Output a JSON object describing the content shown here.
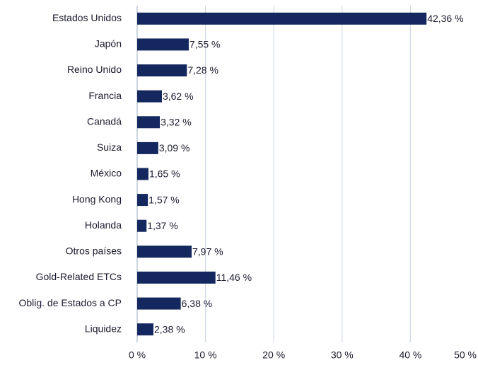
{
  "chart_data": {
    "type": "bar",
    "orientation": "horizontal",
    "categories": [
      "Estados Unidos",
      "Japón",
      "Reino Unido",
      "Francia",
      "Canadá",
      "Suiza",
      "México",
      "Hong Kong",
      "Holanda",
      "Otros países",
      "Gold-Related ETCs",
      "Oblig. de Estados a CP",
      "Liquidez"
    ],
    "values": [
      42.36,
      7.55,
      7.28,
      3.62,
      3.32,
      3.09,
      1.65,
      1.57,
      1.37,
      7.97,
      11.46,
      6.38,
      2.38
    ],
    "value_labels": [
      "42,36 %",
      "7,55 %",
      "7,28 %",
      "3,62 %",
      "3,32 %",
      "3,09 %",
      "1,65 %",
      "1,57 %",
      "1,37 %",
      "7,97 %",
      "11,46 %",
      "6,38 %",
      "2,38 %"
    ],
    "color": "#14285f",
    "xlim": [
      0,
      50
    ],
    "xticks": [
      {
        "value": 0,
        "label": "0 %"
      },
      {
        "value": 10,
        "label": "10 %"
      },
      {
        "value": 20,
        "label": "20 %"
      },
      {
        "value": 30,
        "label": "30 %"
      },
      {
        "value": 40,
        "label": "40 %"
      },
      {
        "value": 50,
        "label": "50 %"
      }
    ],
    "grid": true
  }
}
